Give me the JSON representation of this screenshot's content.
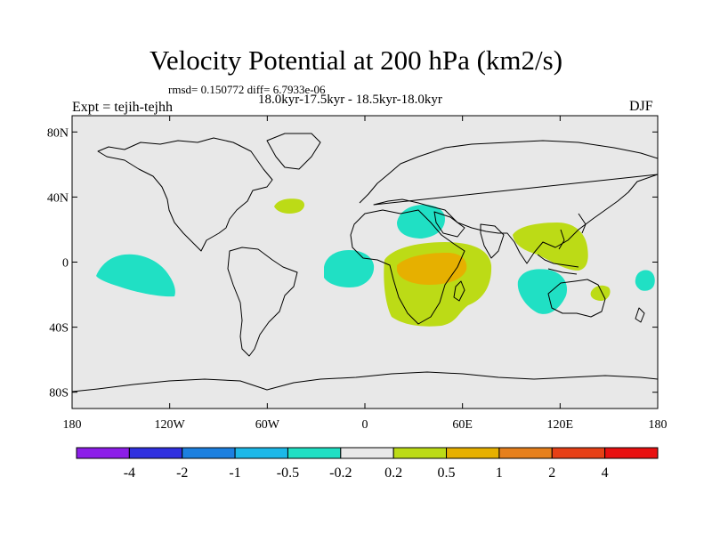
{
  "title": "Velocity Potential at 200 hPa (km2/s)",
  "stats": "rmsd= 0.150772 diff= 6.7933e-06",
  "period": "18.0kyr-17.5kyr - 18.5kyr-18.0kyr",
  "experiment": "Expt = tejih-tejhh",
  "season": "DJF",
  "axes": {
    "y_ticks": [
      {
        "label": "80N",
        "lat": 80
      },
      {
        "label": "40N",
        "lat": 40
      },
      {
        "label": "0",
        "lat": 0
      },
      {
        "label": "40S",
        "lat": -40
      },
      {
        "label": "80S",
        "lat": -80
      }
    ],
    "x_ticks": [
      {
        "label": "180",
        "lon": -180
      },
      {
        "label": "120W",
        "lon": -120
      },
      {
        "label": "60W",
        "lon": -60
      },
      {
        "label": "0",
        "lon": 0
      },
      {
        "label": "60E",
        "lon": 60
      },
      {
        "label": "120E",
        "lon": 120
      },
      {
        "label": "180",
        "lon": 180
      }
    ]
  },
  "colorbar": {
    "colors": [
      "#8c1ee8",
      "#3030e0",
      "#1c80e0",
      "#1cb8e8",
      "#20e0c4",
      "#e8e8e8",
      "#bcdb16",
      "#e6b000",
      "#e6801c",
      "#e64016",
      "#e81010"
    ],
    "labels": [
      "-4",
      "-2",
      "-1",
      "-0.5",
      "-0.2",
      "0.2",
      "0.5",
      "1",
      "2",
      "4"
    ]
  }
}
